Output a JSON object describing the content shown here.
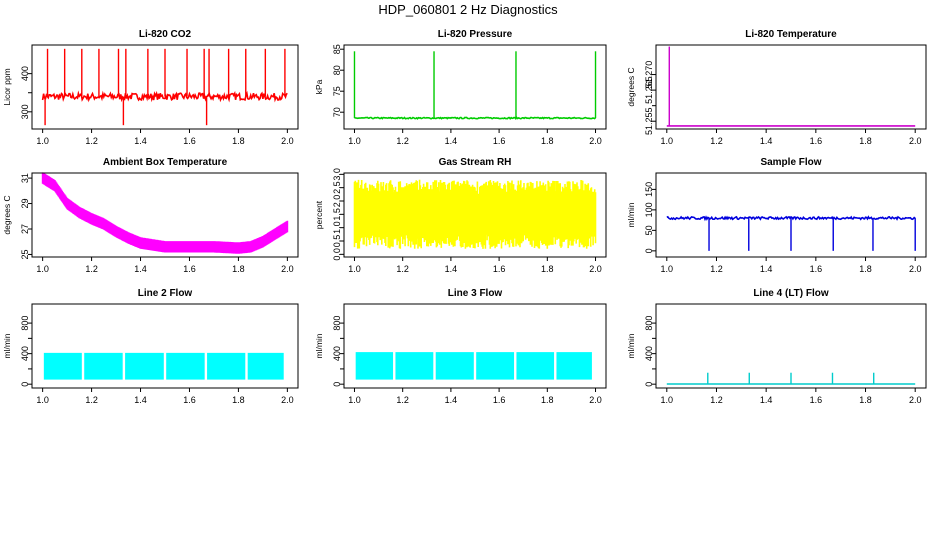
{
  "figure_title": "HDP_060801  2 Hz Diagnostics",
  "chart_data": [
    {
      "id": "co2",
      "type": "line",
      "title": "Li-820 CO2",
      "ylabel": "Licor ppm",
      "color": "#ff0000",
      "xlim": [
        1.0,
        2.0
      ],
      "ylim": [
        255,
        475
      ],
      "xticks": [
        "1.0",
        "1.2",
        "1.4",
        "1.6",
        "1.8",
        "2.0"
      ],
      "yticks": [
        300,
        350,
        400
      ],
      "ytick_labels": [
        "300",
        "",
        "400"
      ],
      "baseline": 340,
      "noise": 9,
      "spikes": [
        1.02,
        1.09,
        1.16,
        1.23,
        1.31,
        1.34,
        1.43,
        1.5,
        1.59,
        1.66,
        1.68,
        1.76,
        1.83,
        1.91,
        1.99
      ],
      "spike_level": 465,
      "dips": [
        1.01,
        1.33,
        1.67
      ],
      "dip_level": 265
    },
    {
      "id": "pressure",
      "type": "line",
      "title": "Li-820 Pressure",
      "ylabel": "kPa",
      "color": "#00cc00",
      "xlim": [
        1.0,
        2.0
      ],
      "ylim": [
        66,
        86
      ],
      "xticks": [
        "1.0",
        "1.2",
        "1.4",
        "1.6",
        "1.8",
        "2.0"
      ],
      "yticks": [
        70,
        75,
        80,
        85
      ],
      "ytick_labels": [
        "70",
        "75",
        "80",
        "85"
      ],
      "baseline": 68.6,
      "noise": 0.15,
      "spikes": [
        1.0,
        1.33,
        1.67,
        2.0
      ],
      "spike_level": 84.5
    },
    {
      "id": "licor_temp",
      "type": "line",
      "title": "Li-820 Temperature",
      "ylabel": "degrees C",
      "color": "#cc00cc",
      "xlim": [
        1.0,
        2.0
      ],
      "ylim": [
        51.2525,
        51.2795
      ],
      "xticks": [
        "1.0",
        "1.2",
        "1.4",
        "1.6",
        "1.8",
        "2.0"
      ],
      "yticks": [
        51.255,
        51.26,
        51.265,
        51.27
      ],
      "ytick_labels": [
        "51.255",
        "",
        "51.265",
        "51.270"
      ],
      "baseline": 51.2535,
      "spikes": [
        1.01
      ],
      "spike_level": 51.279
    },
    {
      "id": "box_temp",
      "type": "band",
      "title": "Ambient Box Temperature",
      "ylabel": "degrees C",
      "color": "#ff00ff",
      "xlim": [
        1.0,
        2.0
      ],
      "ylim": [
        24.8,
        31.4
      ],
      "xticks": [
        "1.0",
        "1.2",
        "1.4",
        "1.6",
        "1.8",
        "2.0"
      ],
      "yticks": [
        25,
        27,
        29,
        31
      ],
      "ytick_labels": [
        "25",
        "27",
        "29",
        "31"
      ],
      "x": [
        1.0,
        1.05,
        1.1,
        1.15,
        1.2,
        1.25,
        1.3,
        1.35,
        1.4,
        1.5,
        1.6,
        1.7,
        1.8,
        1.85,
        1.9,
        1.95,
        2.0
      ],
      "y": [
        31.0,
        30.4,
        29.0,
        28.3,
        27.8,
        27.4,
        26.8,
        26.3,
        25.9,
        25.6,
        25.6,
        25.6,
        25.5,
        25.6,
        26.0,
        26.6,
        27.2
      ],
      "halfwidth": 0.45
    },
    {
      "id": "rh",
      "type": "band",
      "title": "Gas Stream RH",
      "ylabel": "percent",
      "color": "#ffff00",
      "xlim": [
        1.0,
        2.0
      ],
      "ylim": [
        -0.1,
        3.05
      ],
      "xticks": [
        "1.0",
        "1.2",
        "1.4",
        "1.6",
        "1.8",
        "2.0"
      ],
      "yticks": [
        0,
        0.5,
        1,
        1.5,
        2,
        2.5,
        3
      ],
      "ytick_labels": [
        "0.0",
        "0.5",
        "1.0",
        "1.5",
        "2.0",
        "2.5",
        "3.0"
      ],
      "x": [
        1.0,
        2.0
      ],
      "y": [
        1.5,
        1.5
      ],
      "halfwidth": 0.75,
      "jitter": 0.55
    },
    {
      "id": "sample_flow",
      "type": "line",
      "title": "Sample Flow",
      "ylabel": "ml/min",
      "color": "#0000dd",
      "xlim": [
        1.0,
        2.0
      ],
      "ylim": [
        -15,
        190
      ],
      "xticks": [
        "1.0",
        "1.2",
        "1.4",
        "1.6",
        "1.8",
        "2.0"
      ],
      "yticks": [
        0,
        50,
        100,
        150
      ],
      "ytick_labels": [
        "0",
        "50",
        "100",
        "150"
      ],
      "baseline": 80,
      "noise": 3,
      "dips": [
        1.17,
        1.33,
        1.5,
        1.67,
        1.83,
        2.0
      ],
      "dip_level": 0
    },
    {
      "id": "line2",
      "type": "block",
      "title": "Line 2 Flow",
      "ylabel": "ml/min",
      "color": "#00ffff",
      "xlim": [
        1.0,
        2.0
      ],
      "ylim": [
        -50,
        1050
      ],
      "xticks": [
        "1.0",
        "1.2",
        "1.4",
        "1.6",
        "1.8",
        "2.0"
      ],
      "yticks": [
        0,
        200,
        400,
        600,
        800
      ],
      "ytick_labels": [
        "0",
        "",
        "400",
        "",
        "800"
      ],
      "top": 410,
      "bottom": 60,
      "gaps": [
        1.165,
        1.332,
        1.5,
        1.667,
        1.833
      ]
    },
    {
      "id": "line3",
      "type": "block",
      "title": "Line 3 Flow",
      "ylabel": "ml/min",
      "color": "#00ffff",
      "xlim": [
        1.0,
        2.0
      ],
      "ylim": [
        -50,
        1050
      ],
      "xticks": [
        "1.0",
        "1.2",
        "1.4",
        "1.6",
        "1.8",
        "2.0"
      ],
      "yticks": [
        0,
        200,
        400,
        600,
        800
      ],
      "ytick_labels": [
        "0",
        "",
        "400",
        "",
        "800"
      ],
      "top": 420,
      "bottom": 60,
      "gaps": [
        1.165,
        1.332,
        1.5,
        1.667,
        1.833
      ]
    },
    {
      "id": "line4",
      "type": "line",
      "title": "Line 4 (LT) Flow",
      "ylabel": "ml/min",
      "color": "#00cccc",
      "xlim": [
        1.0,
        2.0
      ],
      "ylim": [
        -50,
        1050
      ],
      "xticks": [
        "1.0",
        "1.2",
        "1.4",
        "1.6",
        "1.8",
        "2.0"
      ],
      "yticks": [
        0,
        200,
        400,
        600,
        800
      ],
      "ytick_labels": [
        "0",
        "",
        "400",
        "",
        "800"
      ],
      "baseline": 2,
      "noise": 0,
      "spikes": [
        1.165,
        1.332,
        1.5,
        1.667,
        1.833
      ],
      "spike_level": 150
    }
  ]
}
